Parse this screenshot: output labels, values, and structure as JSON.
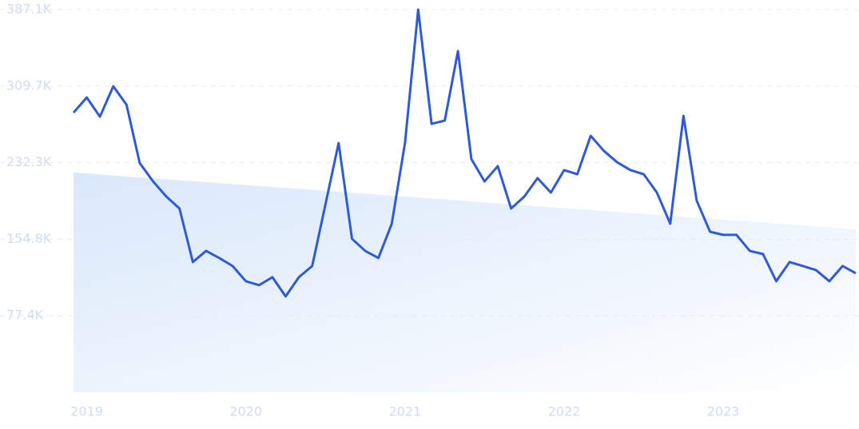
{
  "chart_data": {
    "type": "line",
    "x": [
      2018.917,
      2019,
      2019.083,
      2019.167,
      2019.25,
      2019.333,
      2019.417,
      2019.5,
      2019.583,
      2019.667,
      2019.75,
      2019.833,
      2019.917,
      2020,
      2020.083,
      2020.167,
      2020.25,
      2020.333,
      2020.417,
      2020.5,
      2020.583,
      2020.667,
      2020.75,
      2020.833,
      2020.917,
      2021,
      2021.083,
      2021.167,
      2021.25,
      2021.333,
      2021.417,
      2021.5,
      2021.583,
      2021.667,
      2021.75,
      2021.833,
      2021.917,
      2022,
      2022.083,
      2022.167,
      2022.25,
      2022.333,
      2022.417,
      2022.5,
      2022.583,
      2022.667,
      2022.75,
      2022.833,
      2022.917,
      2023,
      2023.083,
      2023.167,
      2023.25,
      2023.333,
      2023.417,
      2023.5,
      2023.583,
      2023.667,
      2023.75,
      2023.833
    ],
    "series": [
      {
        "color": "#2f5ad6",
        "values": [
          282800,
          298200,
          278800,
          309500,
          290900,
          231900,
          213300,
          198000,
          185900,
          131700,
          143000,
          135800,
          127700,
          112300,
          108300,
          116400,
          97000,
          116400,
          127700,
          189900,
          252100,
          155200,
          143000,
          135800,
          170500,
          252100,
          387100,
          271500,
          274800,
          345100,
          236000,
          213300,
          228700,
          185900,
          198000,
          216600,
          202000,
          224700,
          220600,
          259400,
          244100,
          232700,
          224700,
          220600,
          202000,
          170500,
          279600,
          193900,
          162400,
          159200,
          159200,
          143000,
          139800,
          112300,
          131700,
          127700,
          123600,
          112300,
          127700,
          120400
        ]
      }
    ],
    "trend": {
      "color": "#dbe9fb",
      "x": [
        2018.917,
        2023.833
      ],
      "values": [
        222200,
        164900
      ]
    },
    "xlim": [
      2018.917,
      2023.833
    ],
    "xticks": [
      2019,
      2020,
      2021,
      2022,
      2023
    ],
    "ylim": [
      0,
      387100
    ],
    "yticks": [
      {
        "value": 77400,
        "label": "77.4K"
      },
      {
        "value": 154800,
        "label": "154.8K"
      },
      {
        "value": 232300,
        "label": "232.3K"
      },
      {
        "value": 309700,
        "label": "309.7K"
      },
      {
        "value": 387100,
        "label": "387.1K"
      }
    ],
    "grid": true
  }
}
